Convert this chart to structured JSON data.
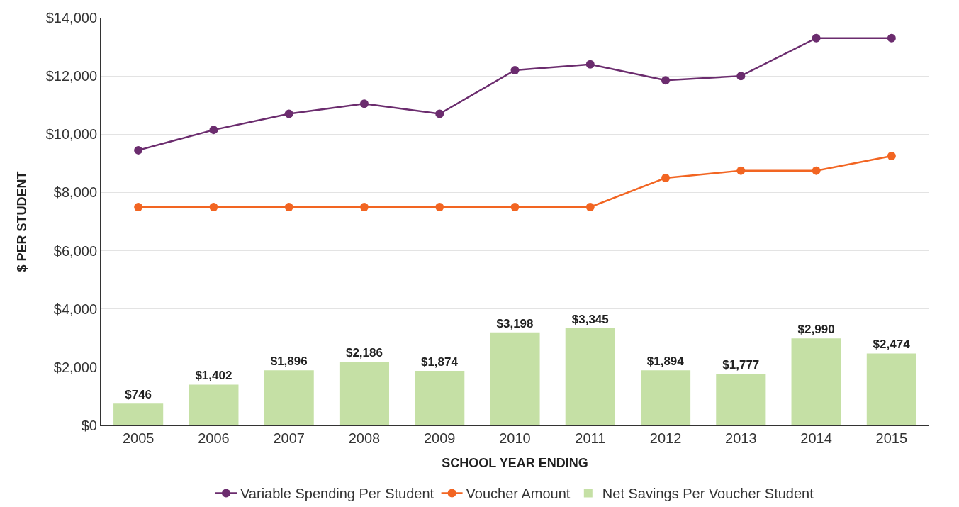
{
  "chart_data": {
    "type": "bar",
    "xlabel": "SCHOOL YEAR ENDING",
    "ylabel": "$ PER STUDENT",
    "categories": [
      "2005",
      "2006",
      "2007",
      "2008",
      "2009",
      "2010",
      "2011",
      "2012",
      "2013",
      "2014",
      "2015"
    ],
    "series": [
      {
        "name": "Variable Spending Per Student",
        "type": "line",
        "color": "#6b2c6e",
        "values": [
          9450,
          10150,
          10700,
          11050,
          10700,
          12200,
          12400,
          11850,
          12000,
          13300,
          13300
        ]
      },
      {
        "name": "Voucher Amount",
        "type": "line",
        "color": "#f26522",
        "values": [
          7500,
          7500,
          7500,
          7500,
          7500,
          7500,
          7500,
          8500,
          8750,
          8750,
          9250
        ]
      },
      {
        "name": "Net Savings Per Voucher Student",
        "color": "#c5e0a5",
        "values": [
          746,
          1402,
          1896,
          2186,
          1874,
          3198,
          3345,
          1894,
          1777,
          2990,
          2474
        ],
        "value_labels": [
          "$746",
          "$1,402",
          "$1,896",
          "$2,186",
          "$1,874",
          "$3,198",
          "$3,345",
          "$1,894",
          "$1,777",
          "$2,990",
          "$2,474"
        ]
      }
    ],
    "ylim": [
      0,
      14000
    ],
    "yticks": [
      {
        "value": 0,
        "label": "$0"
      },
      {
        "value": 2000,
        "label": "$2,000"
      },
      {
        "value": 4000,
        "label": "$4,000"
      },
      {
        "value": 6000,
        "label": "$6,000"
      },
      {
        "value": 8000,
        "label": "$8,000"
      },
      {
        "value": 10000,
        "label": "$10,000"
      },
      {
        "value": 12000,
        "label": "$12,000"
      },
      {
        "value": 14000,
        "label": "$14,000"
      }
    ],
    "grid": "y",
    "legend": "bottom",
    "marker": "circle",
    "line_style": "solid"
  }
}
